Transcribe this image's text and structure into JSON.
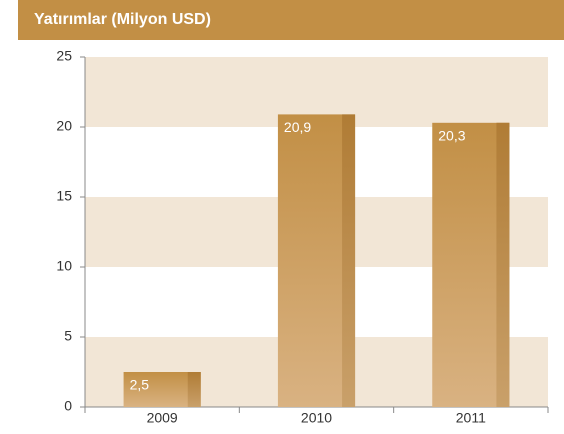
{
  "chart_data": {
    "type": "bar",
    "title": "Yatırımlar (Milyon USD)",
    "categories": [
      "2009",
      "2010",
      "2011"
    ],
    "values": [
      2.5,
      20.9,
      20.3
    ],
    "value_labels": [
      "2,5",
      "20,9",
      "20,3"
    ],
    "color": "#c28f45",
    "ylim": [
      0,
      25
    ],
    "yticks": [
      0,
      5,
      10,
      15,
      20,
      25
    ],
    "grid": true
  }
}
